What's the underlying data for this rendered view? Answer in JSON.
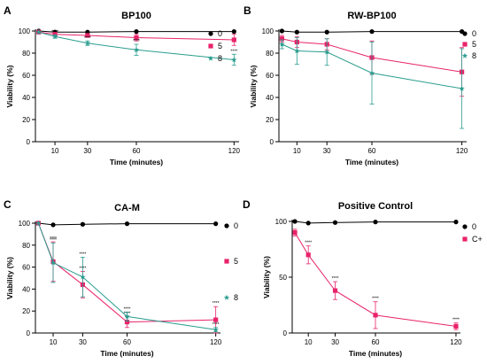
{
  "chart_data": [
    {
      "panel": "A",
      "type": "line",
      "title": "BP100",
      "xlabel": "Time (minutes)",
      "ylabel": "Viability (%)",
      "x": [
        0,
        10,
        30,
        60,
        120
      ],
      "x_ticks": [
        10,
        30,
        60,
        120
      ],
      "y_ticks": [
        0,
        20,
        40,
        60,
        80,
        100
      ],
      "xlim": [
        -2,
        122
      ],
      "ylim": [
        0,
        100
      ],
      "series": [
        {
          "name": "0",
          "color": "#000000",
          "marker": "circle",
          "values": [
            100,
            99,
            99,
            99.5,
            99.5
          ],
          "errors": [
            0,
            0,
            0,
            0,
            0
          ]
        },
        {
          "name": "5",
          "color": "#e8236a",
          "marker": "square",
          "values": [
            99,
            97,
            96,
            94,
            92
          ],
          "errors": [
            0,
            1,
            1.5,
            3,
            5
          ],
          "sig": [
            "",
            "",
            "",
            "",
            ""
          ]
        },
        {
          "name": "8",
          "color": "#2a9d8f",
          "marker": "star",
          "values": [
            99,
            95,
            89,
            83,
            74
          ],
          "errors": [
            0,
            1.5,
            2,
            5,
            5
          ],
          "sig": [
            "",
            "****",
            "****",
            "****",
            "****"
          ]
        }
      ]
    },
    {
      "panel": "B",
      "type": "line",
      "title": "RW-BP100",
      "xlabel": "Time (minutes)",
      "ylabel": "Viability (%)",
      "x": [
        0,
        10,
        30,
        60,
        120
      ],
      "x_ticks": [
        10,
        30,
        60,
        120
      ],
      "y_ticks": [
        0,
        20,
        40,
        60,
        80,
        100
      ],
      "xlim": [
        -2,
        122
      ],
      "ylim": [
        0,
        100
      ],
      "series": [
        {
          "name": "0",
          "color": "#000000",
          "marker": "circle",
          "values": [
            100,
            99,
            99,
            99.5,
            99.5
          ],
          "errors": [
            0,
            0,
            0,
            0,
            0
          ]
        },
        {
          "name": "5",
          "color": "#e8236a",
          "marker": "square",
          "values": [
            93,
            90,
            88,
            76,
            63
          ],
          "errors": [
            3,
            5,
            5,
            15,
            22
          ],
          "sig": [
            "",
            "",
            "",
            "",
            ""
          ]
        },
        {
          "name": "8",
          "color": "#2a9d8f",
          "marker": "star",
          "values": [
            88,
            82,
            81,
            62,
            48
          ],
          "errors": [
            4,
            12,
            12,
            28,
            36
          ],
          "sig": [
            "",
            "",
            "",
            "",
            ""
          ]
        }
      ]
    },
    {
      "panel": "C",
      "type": "line",
      "title": "CA-M",
      "xlabel": "Time (minutes)",
      "ylabel": "Viability (%)",
      "x": [
        0,
        10,
        30,
        60,
        120
      ],
      "x_ticks": [
        10,
        30,
        60,
        120
      ],
      "y_ticks": [
        0,
        20,
        40,
        60,
        80,
        100
      ],
      "xlim": [
        -2,
        122
      ],
      "ylim": [
        0,
        100
      ],
      "series": [
        {
          "name": "0",
          "color": "#000000",
          "marker": "circle",
          "values": [
            100,
            98.5,
            99,
            99.5,
            99.5
          ],
          "errors": [
            0,
            0,
            0,
            0,
            0
          ]
        },
        {
          "name": "5",
          "color": "#e8236a",
          "marker": "square",
          "values": [
            100,
            65,
            44,
            10,
            12
          ],
          "errors": [
            0,
            18,
            12,
            5,
            12
          ],
          "sig": [
            "",
            "****",
            "****",
            "****",
            "****"
          ]
        },
        {
          "name": "8",
          "color": "#2a9d8f",
          "marker": "star",
          "values": [
            100,
            64,
            51,
            15,
            3
          ],
          "errors": [
            0,
            18,
            18,
            4,
            2
          ],
          "sig": [
            "",
            "****",
            "****",
            "****",
            "****"
          ]
        }
      ]
    },
    {
      "panel": "D",
      "type": "line",
      "title": "Positive Control",
      "xlabel": "Time (minutes)",
      "ylabel": "Viability (%)",
      "x": [
        0,
        10,
        30,
        60,
        120
      ],
      "x_ticks": [
        10,
        30,
        60,
        120
      ],
      "y_ticks": [
        0,
        50,
        100
      ],
      "xlim": [
        -2,
        122
      ],
      "ylim": [
        0,
        100
      ],
      "series": [
        {
          "name": "0",
          "color": "#000000",
          "marker": "circle",
          "values": [
            100,
            98.5,
            99,
            99.5,
            99.5
          ],
          "errors": [
            0,
            0,
            0,
            0,
            0
          ]
        },
        {
          "name": "C+",
          "color": "#e8236a",
          "marker": "square",
          "values": [
            90,
            70,
            38,
            16,
            6
          ],
          "errors": [
            3,
            8,
            8,
            12,
            3
          ],
          "sig": [
            "",
            "****",
            "****",
            "****",
            "****"
          ]
        }
      ]
    }
  ]
}
